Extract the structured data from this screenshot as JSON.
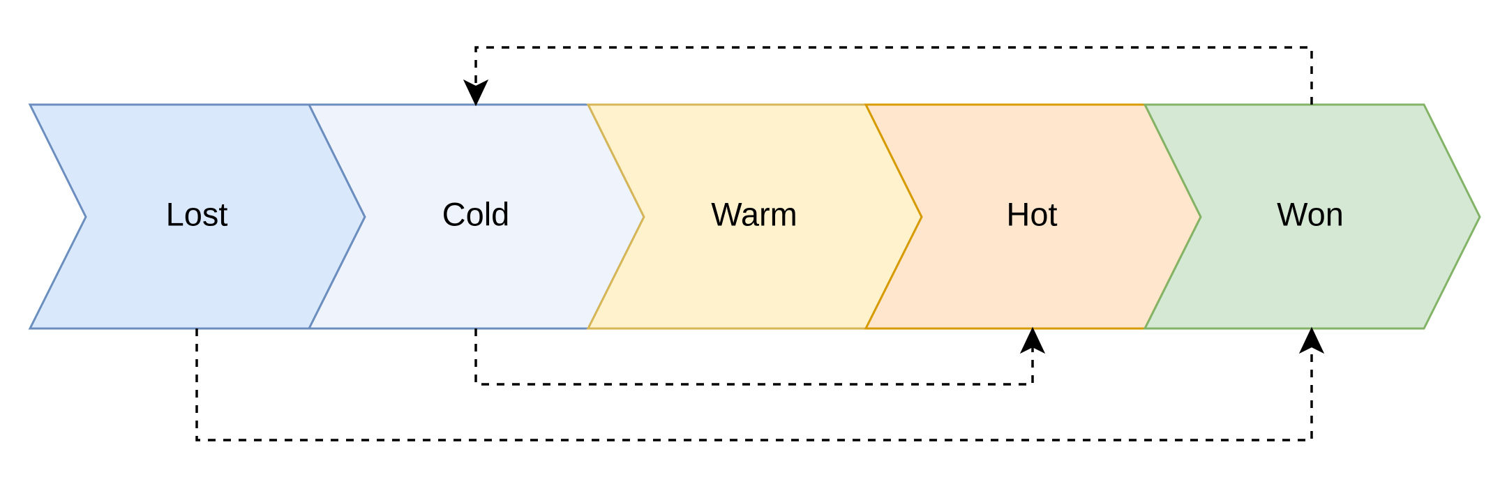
{
  "diagram": {
    "stages": [
      {
        "label": "Lost",
        "fill": "#dae8fc",
        "stroke": "#6c8ebf"
      },
      {
        "label": "Cold",
        "fill": "#eff4fc",
        "stroke": "#6c8ebf"
      },
      {
        "label": "Warm",
        "fill": "#fff2cc",
        "stroke": "#d6b656"
      },
      {
        "label": "Hot",
        "fill": "#ffe6cc",
        "stroke": "#d79b00"
      },
      {
        "label": "Won",
        "fill": "#d5e8d4",
        "stroke": "#82b366"
      }
    ],
    "connections": [
      {
        "from": "Won",
        "to": "Cold",
        "style": "dashed"
      },
      {
        "from": "Cold",
        "to": "Hot",
        "style": "dashed"
      },
      {
        "from": "Lost",
        "to": "Won",
        "style": "dashed"
      }
    ]
  }
}
